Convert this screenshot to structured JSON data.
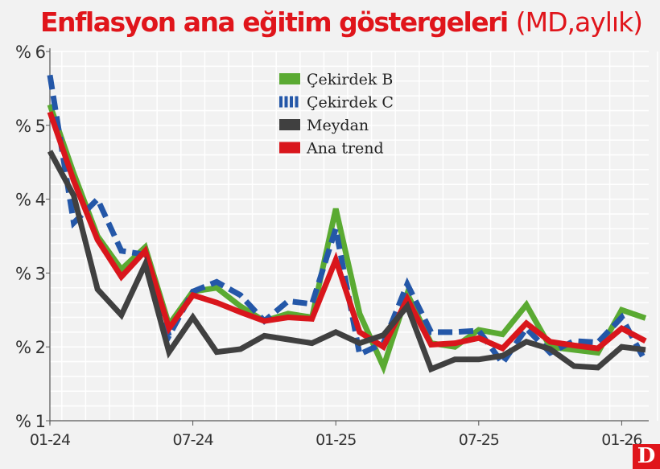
{
  "title": {
    "main": "Enflasyon ana eğitim göstergeleri",
    "sub": "(MD,aylık)"
  },
  "logo_text": "D",
  "chart_data": {
    "type": "line",
    "title": "Enflasyon ana eğitim göstergeleri (MD,aylık)",
    "x": [
      "01-24",
      "02-24",
      "03-24",
      "04-24",
      "05-24",
      "06-24",
      "07-24",
      "08-24",
      "09-24",
      "10-24",
      "11-24",
      "12-24",
      "01-25",
      "02-25",
      "03-25",
      "04-25",
      "05-25",
      "06-25",
      "07-25",
      "08-25",
      "09-25",
      "10-25",
      "11-25",
      "12-25",
      "01-26",
      "02-26"
    ],
    "x_tick_labels": [
      "01-24",
      "07-24",
      "01-25",
      "07-25",
      "01-26"
    ],
    "y_tick_labels": [
      "% 1",
      "% 2",
      "% 3",
      "% 4",
      "% 5",
      "% 6"
    ],
    "y_ticks": [
      1,
      2,
      3,
      4,
      5,
      6
    ],
    "ylim": [
      1,
      6
    ],
    "grid": true,
    "legend_position": "top-center",
    "series": [
      {
        "name": "Çekirdek B",
        "color": "#5aaa32",
        "style": "solid",
        "values": [
          5.28,
          4.35,
          3.5,
          3.05,
          3.35,
          2.3,
          2.75,
          2.8,
          2.55,
          2.35,
          2.45,
          2.4,
          3.87,
          2.45,
          1.73,
          2.72,
          2.05,
          2.0,
          2.23,
          2.17,
          2.57,
          2.0,
          1.96,
          1.92,
          2.5,
          2.39
        ]
      },
      {
        "name": "Çekirdek C",
        "color": "#2457a8",
        "style": "dashed",
        "values": [
          5.68,
          3.68,
          4.0,
          3.3,
          3.25,
          2.15,
          2.75,
          2.88,
          2.7,
          2.35,
          2.62,
          2.58,
          3.6,
          1.9,
          2.05,
          2.85,
          2.2,
          2.2,
          2.22,
          1.78,
          2.25,
          1.92,
          2.08,
          2.06,
          2.4,
          1.8
        ]
      },
      {
        "name": "Meydan",
        "color": "#404040",
        "style": "solid",
        "values": [
          4.65,
          4.05,
          2.78,
          2.43,
          3.12,
          1.93,
          2.4,
          1.93,
          1.97,
          2.15,
          2.1,
          2.05,
          2.2,
          2.05,
          2.16,
          2.55,
          1.7,
          1.83,
          1.83,
          1.88,
          2.07,
          1.97,
          1.74,
          1.72,
          2.0,
          1.96
        ]
      },
      {
        "name": "Ana trend",
        "color": "#d9161c",
        "style": "solid",
        "values": [
          5.18,
          4.25,
          3.45,
          2.95,
          3.3,
          2.25,
          2.7,
          2.6,
          2.47,
          2.35,
          2.4,
          2.38,
          3.18,
          2.2,
          2.0,
          2.65,
          2.03,
          2.05,
          2.12,
          1.98,
          2.32,
          2.07,
          2.02,
          1.98,
          2.25,
          2.08
        ]
      }
    ]
  }
}
